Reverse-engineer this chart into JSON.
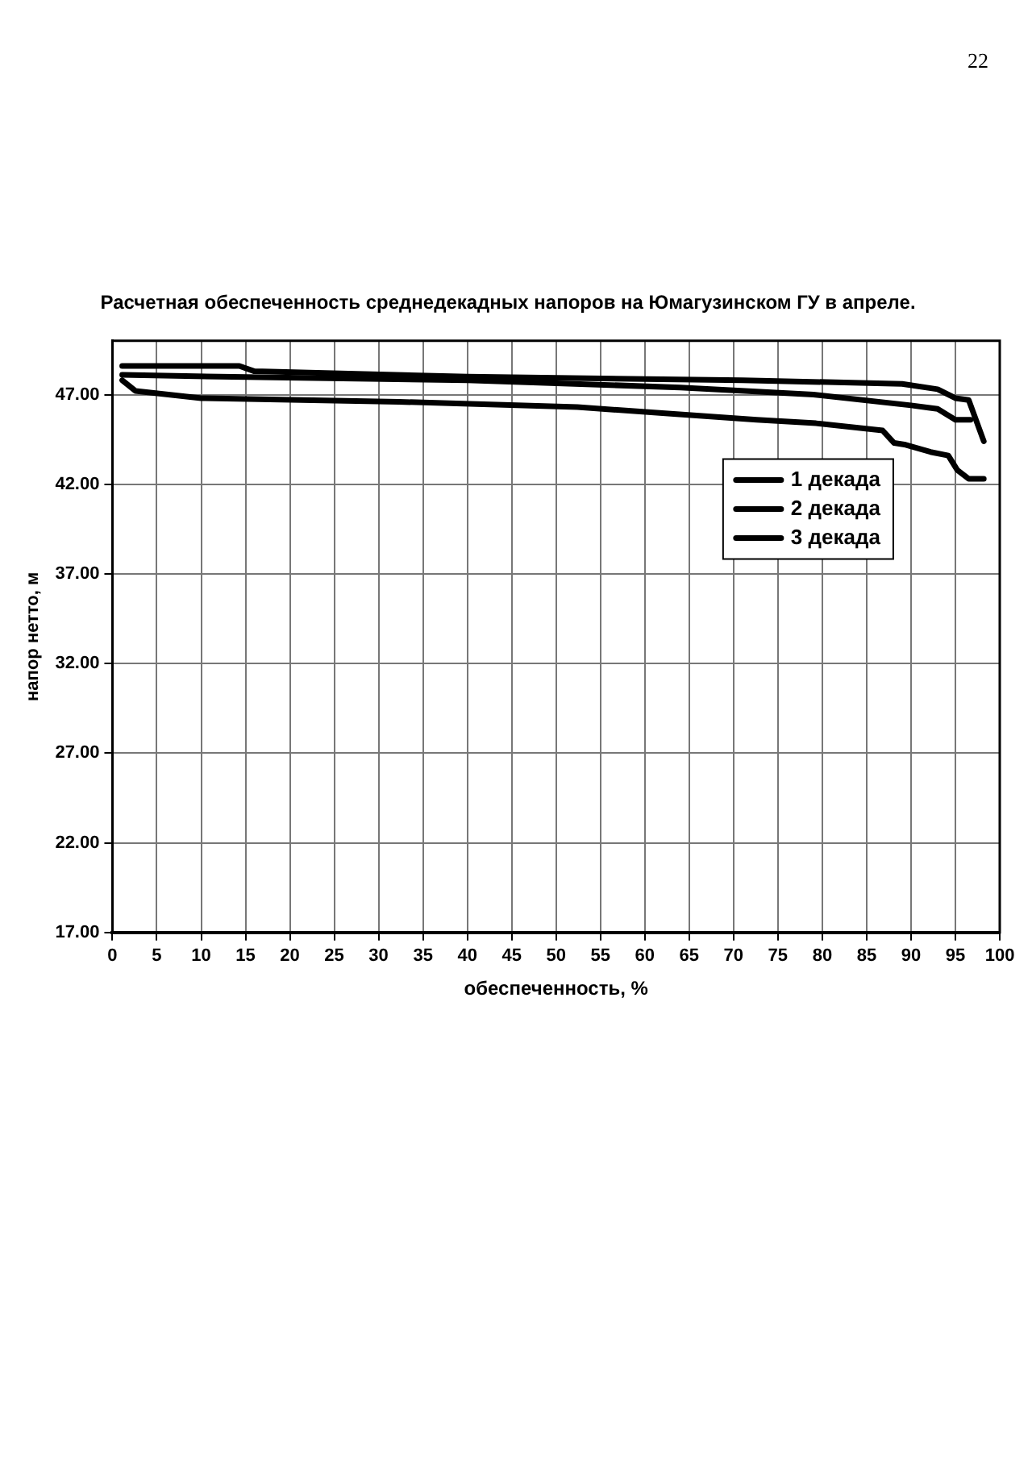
{
  "chart_data": {
    "type": "line",
    "title": "Расчетная обеспеченность среднедекадных напоров на Юмагузинском ГУ в апреле.",
    "xlabel": "обеспеченность, %",
    "ylabel": "напор нетто, м",
    "xlim": [
      0,
      100
    ],
    "xticks": [
      0,
      5,
      10,
      15,
      20,
      25,
      30,
      35,
      40,
      45,
      50,
      55,
      60,
      65,
      70,
      75,
      80,
      85,
      90,
      95,
      100
    ],
    "ylim": [
      17,
      50
    ],
    "yticks": [
      {
        "value": 17,
        "label": "17.00"
      },
      {
        "value": 22,
        "label": "22.00"
      },
      {
        "value": 27,
        "label": "27.00"
      },
      {
        "value": 32,
        "label": "32.00"
      },
      {
        "value": 37,
        "label": "37.00"
      },
      {
        "value": 42,
        "label": "42.00"
      },
      {
        "value": 47,
        "label": "47.00"
      }
    ],
    "grid": true,
    "legend": "top right",
    "marker": "none",
    "line_style": "solid",
    "series": [
      {
        "name": "1 декада",
        "color": "#000000",
        "x": [
          1.1,
          14.3,
          16,
          40,
          71,
          89,
          93,
          95,
          96.5,
          98.2
        ],
        "values": [
          48.6,
          48.6,
          48.3,
          48.0,
          47.8,
          47.6,
          47.3,
          46.8,
          46.7,
          44.4
        ]
      },
      {
        "name": "2 декада",
        "color": "#000000",
        "x": [
          1.1,
          12,
          40,
          64,
          79,
          90,
          93,
          95,
          96.7
        ],
        "values": [
          48.1,
          48.0,
          47.8,
          47.4,
          47.0,
          46.4,
          46.2,
          45.6,
          45.6
        ]
      },
      {
        "name": "3 декада",
        "color": "#000000",
        "x": [
          1.1,
          2.6,
          10,
          32.3,
          52.4,
          63.9,
          72.6,
          79.3,
          86.8,
          88.1,
          89.4,
          92.2,
          94.2,
          95.2,
          96.5,
          98.2
        ],
        "values": [
          47.8,
          47.2,
          46.8,
          46.6,
          46.3,
          45.9,
          45.6,
          45.4,
          45.0,
          44.3,
          44.2,
          43.8,
          43.6,
          42.8,
          42.3,
          42.3
        ]
      }
    ],
    "annotations": [
      "22"
    ]
  }
}
